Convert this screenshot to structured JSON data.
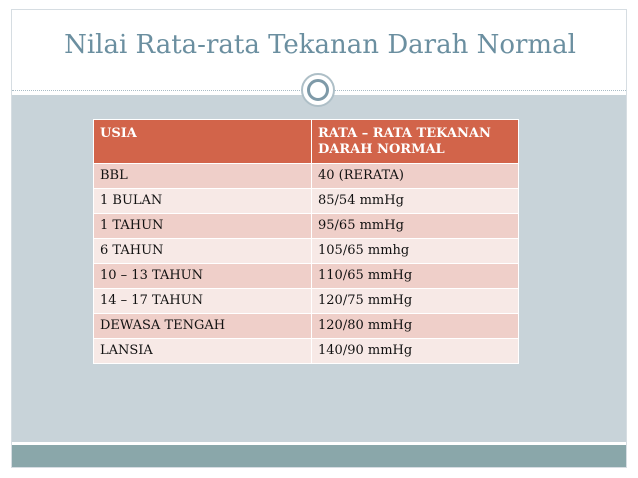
{
  "slide": {
    "title": "Nilai Rata-rata Tekanan Darah Normal"
  },
  "table": {
    "headers": [
      "USIA",
      "RATA – RATA TEKANAN DARAH NORMAL"
    ],
    "rows": [
      [
        "BBL",
        "40 (RERATA)"
      ],
      [
        "1 BULAN",
        "85/54 mmHg"
      ],
      [
        "1 TAHUN",
        "95/65 mmHg"
      ],
      [
        "6 TAHUN",
        "105/65 mmhg"
      ],
      [
        "10 – 13 TAHUN",
        "110/65 mmHg"
      ],
      [
        "14 – 17 TAHUN",
        "120/75 mmHg"
      ],
      [
        "DEWASA TENGAH",
        "120/80 mmHg"
      ],
      [
        "LANSIA",
        "140/90 mmHg"
      ]
    ]
  },
  "colors": {
    "title": "#6b8fa0",
    "header_bg": "#d2644a",
    "row_odd": "#efcfc9",
    "row_even": "#f7e9e6",
    "panel": "#c8d3d9",
    "footer": "#8aa7aa"
  }
}
